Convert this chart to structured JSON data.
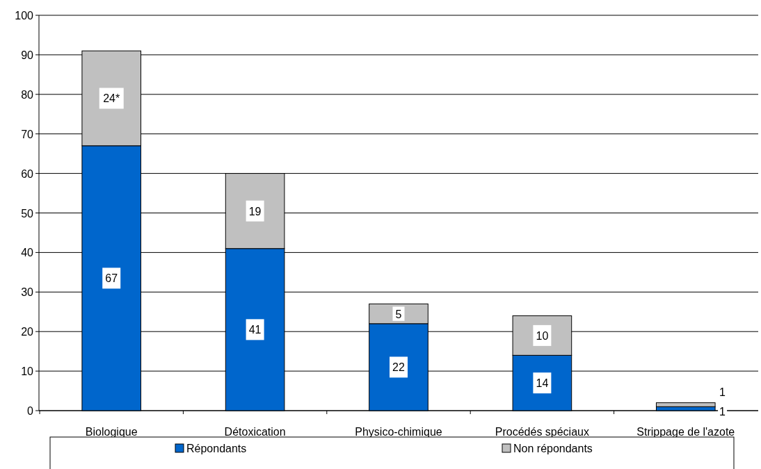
{
  "chart_data": {
    "type": "bar",
    "stacked": true,
    "categories": [
      "Biologique",
      "Détoxication",
      "Physico-chimique",
      "Procédés spéciaux",
      "Strippage de l'azote"
    ],
    "series": [
      {
        "name": "Répondants",
        "color": "#0066cc",
        "values": [
          67,
          41,
          22,
          14,
          1
        ],
        "value_labels": [
          "67",
          "41",
          "22",
          "14",
          "1"
        ]
      },
      {
        "name": "Non répondants",
        "color": "#c0c0c0",
        "values": [
          24,
          19,
          5,
          10,
          1
        ],
        "value_labels": [
          "24*",
          "19",
          "5",
          "10",
          "1"
        ]
      }
    ],
    "ylim": [
      0,
      100
    ],
    "yticks": [
      0,
      10,
      20,
      30,
      40,
      50,
      60,
      70,
      80,
      90,
      100
    ],
    "grid": "y",
    "legend": "bottom"
  }
}
